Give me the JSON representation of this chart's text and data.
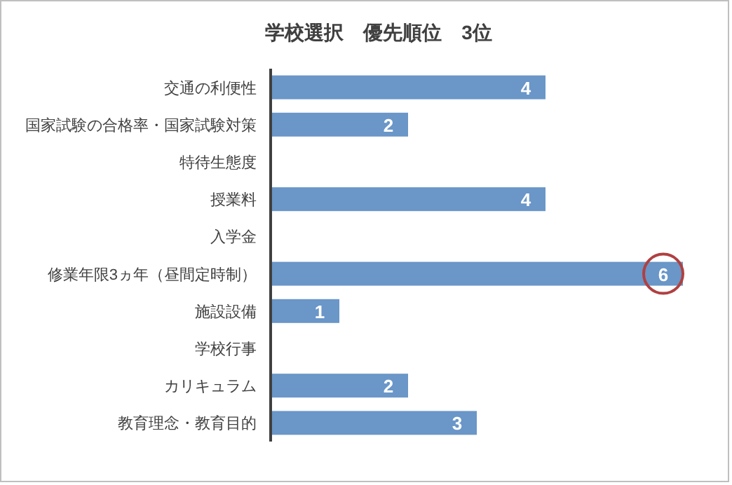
{
  "chart_data": {
    "type": "bar",
    "orientation": "horizontal",
    "title": "学校選択　優先順位　3位",
    "categories": [
      "交通の利便性",
      "国家試験の合格率・国家試験対策",
      "特待生態度",
      "授業料",
      "入学金",
      "修業年限3ヵ年（昼間定時制）",
      "施設設備",
      "学校行事",
      "カリキュラム",
      "教育理念・教育目的"
    ],
    "values": [
      4,
      2,
      null,
      4,
      null,
      6,
      1,
      null,
      2,
      3
    ],
    "color": "#6a96c8",
    "data_labels": true
  }
}
